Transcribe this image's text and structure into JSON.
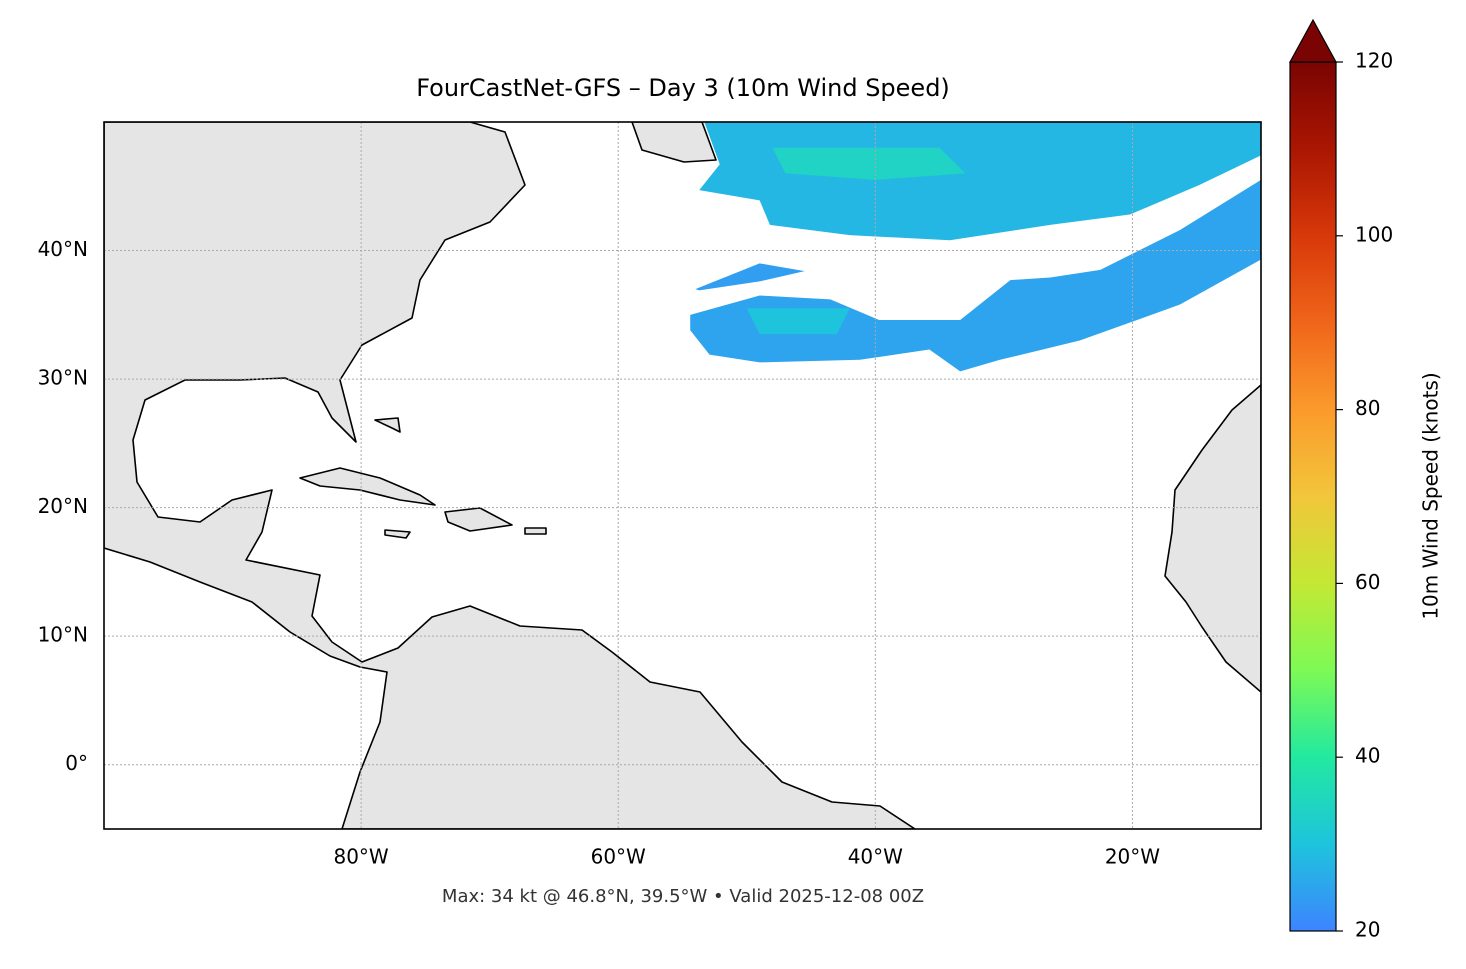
{
  "chart_data": {
    "type": "map",
    "title": "FourCastNet-GFS – Day 3 (10m Wind Speed)",
    "footer": "Max: 34 kt @ 46.8°N, 39.5°W • Valid 2025-12-08 00Z",
    "xlim": [
      -100,
      -10
    ],
    "ylim": [
      -5,
      50
    ],
    "xticks": [
      {
        "value": -80,
        "label": "80°W"
      },
      {
        "value": -60,
        "label": "60°W"
      },
      {
        "value": -40,
        "label": "40°W"
      },
      {
        "value": -20,
        "label": "20°W"
      }
    ],
    "yticks": [
      {
        "value": 0,
        "label": "0°"
      },
      {
        "value": 10,
        "label": "10°N"
      },
      {
        "value": 20,
        "label": "20°N"
      },
      {
        "value": 30,
        "label": "30°N"
      },
      {
        "value": 40,
        "label": "40°N"
      }
    ],
    "grid": true,
    "regions": [
      {
        "lon": [
          -53.3,
          -10,
          -10,
          -14.8,
          -20.2,
          -26.4,
          -34.2,
          -42,
          -48.2,
          -49,
          -53.7,
          -52.1
        ],
        "lat": [
          50,
          50,
          47.4,
          45.1,
          42.8,
          42,
          40.8,
          41.2,
          42,
          43.9,
          44.7,
          46.7
        ],
        "value": 28
      },
      {
        "lon": [
          -48,
          -35,
          -33,
          -40,
          -47
        ],
        "lat": [
          48,
          48,
          46,
          45.5,
          46
        ],
        "value": 34
      },
      {
        "lon": [
          -54.4,
          -49,
          -43.5,
          -39.7,
          -33.4,
          -29.5,
          -26.4,
          -22.5,
          -16.3,
          -10,
          -10,
          -16.3,
          -24.1,
          -30.3,
          -33.4,
          -35.8,
          -41.2,
          -49,
          -52.9,
          -54.4
        ],
        "lat": [
          35,
          36.5,
          36.2,
          34.6,
          34.6,
          37.7,
          37.9,
          38.5,
          41.6,
          45.5,
          39.3,
          35.8,
          33,
          31.5,
          30.6,
          32.3,
          31.5,
          31.3,
          31.9,
          33.8
        ],
        "value": 25
      },
      {
        "lon": [
          -50,
          -42,
          -43,
          -49
        ],
        "lat": [
          35.5,
          35.5,
          33.5,
          33.5
        ],
        "value": 30
      },
      {
        "lon": [
          -54,
          -49,
          -45.5,
          -49,
          -53.7
        ],
        "lat": [
          37,
          39,
          38.4,
          37.6,
          36.9
        ],
        "value": 24
      }
    ],
    "colorbar": {
      "label": "10m Wind Speed (knots)",
      "lim": [
        20,
        120
      ],
      "ticks": [
        20,
        40,
        60,
        80,
        100,
        120
      ],
      "colors": [
        "#3d84ff",
        "#1ec4dc",
        "#22e9a0",
        "#7dfa55",
        "#c4e834",
        "#f2c63a",
        "#fb9a2c",
        "#f0651a",
        "#d8380a",
        "#aa1602",
        "#7a0403"
      ]
    }
  }
}
